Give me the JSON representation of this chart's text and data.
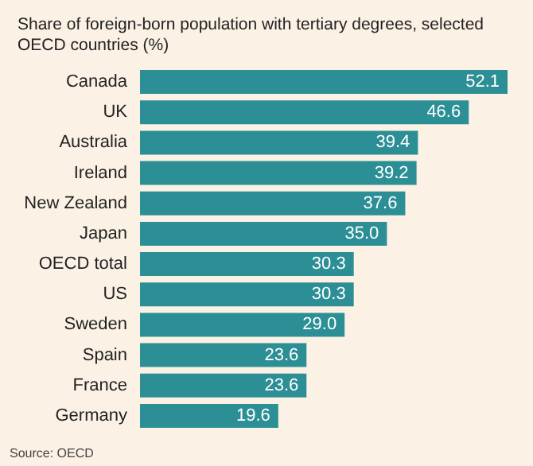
{
  "chart_data": {
    "type": "bar",
    "orientation": "horizontal",
    "title": "Share of foreign-born population with tertiary degrees, selected OECD countries (%)",
    "categories": [
      "Canada",
      "UK",
      "Australia",
      "Ireland",
      "New Zealand",
      "Japan",
      "OECD total",
      "US",
      "Sweden",
      "Spain",
      "France",
      "Germany"
    ],
    "values": [
      52.1,
      46.6,
      39.4,
      39.2,
      37.6,
      35.0,
      30.3,
      30.3,
      29.0,
      23.6,
      23.6,
      19.6
    ],
    "value_labels": [
      "52.1",
      "46.6",
      "39.4",
      "39.2",
      "37.6",
      "35.0",
      "30.3",
      "30.3",
      "29.0",
      "23.6",
      "23.6",
      "19.6"
    ],
    "color": "#2b8f95",
    "annotations": [
      "Source: OECD"
    ]
  }
}
